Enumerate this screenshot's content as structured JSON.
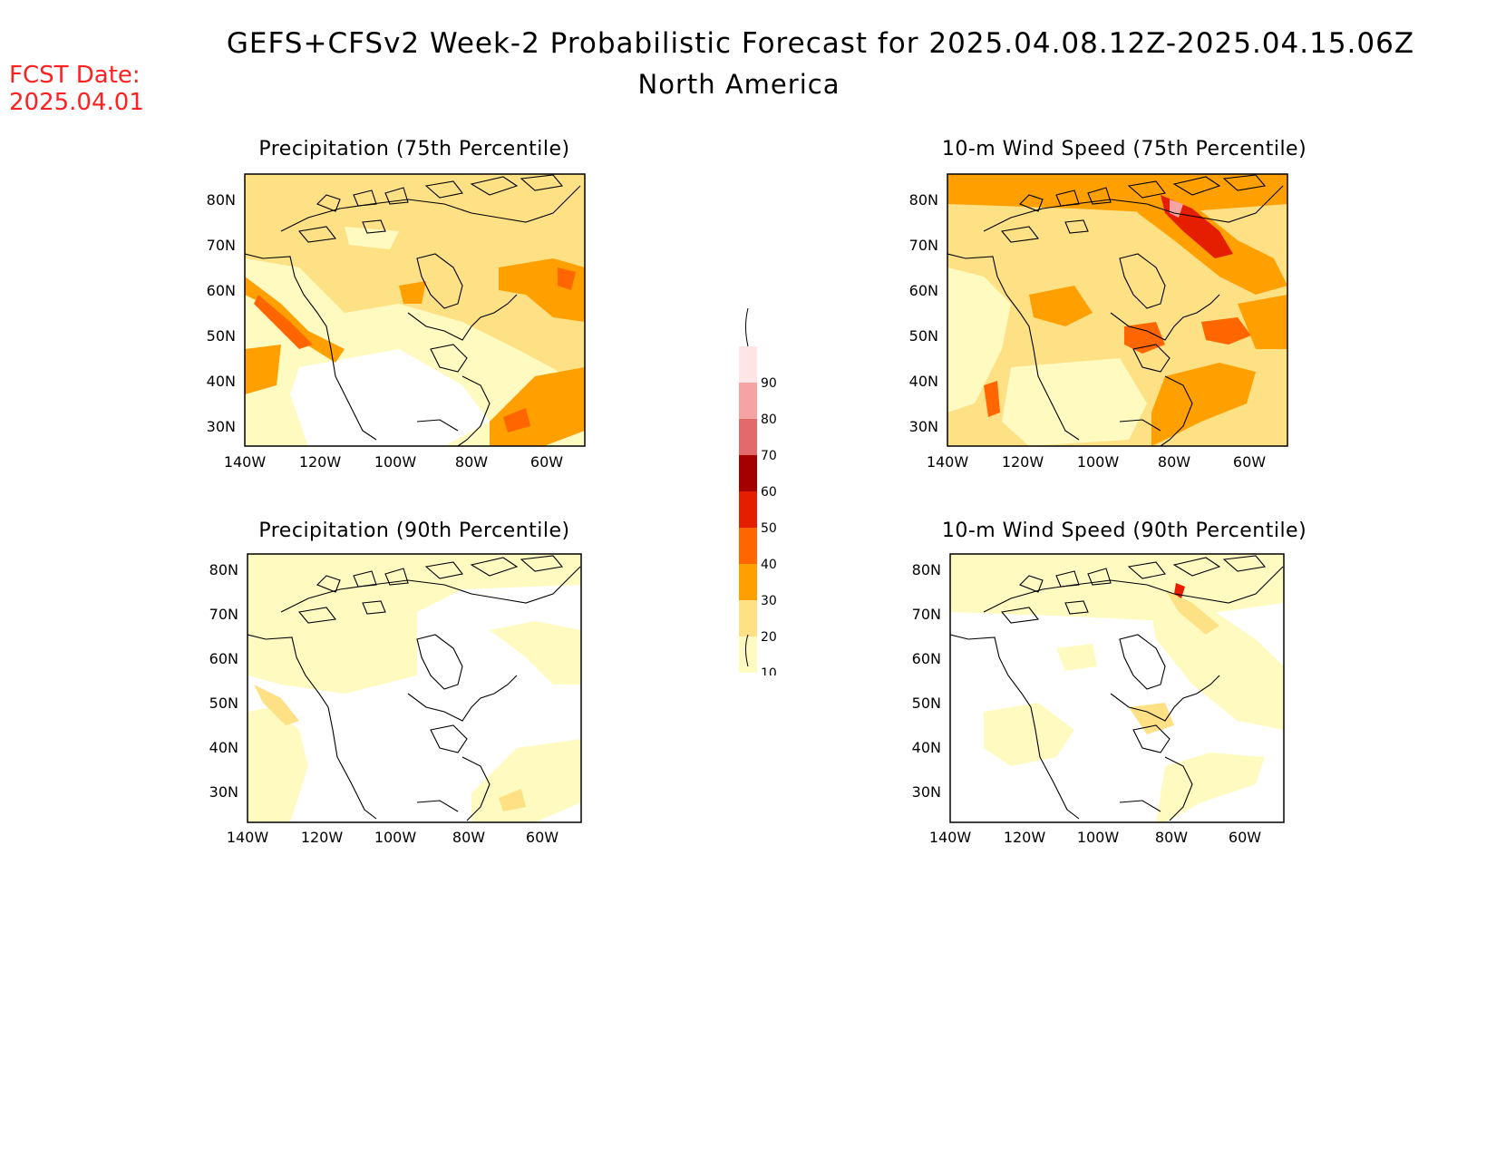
{
  "header": {
    "title": "GEFS+CFSv2 Week-2 Probabilistic Forecast for 2025.04.08.12Z-2025.04.15.06Z",
    "subtitle": "North America",
    "fcst_date_label": "FCST Date:",
    "fcst_date_value": "2025.04.01"
  },
  "axes": {
    "lat_ticks": [
      "80N",
      "70N",
      "60N",
      "50N",
      "40N",
      "30N"
    ],
    "lon_ticks": [
      "140W",
      "120W",
      "100W",
      "80W",
      "60W"
    ]
  },
  "panels": [
    {
      "id": "precip75",
      "title": "Precipitation (75th Percentile)"
    },
    {
      "id": "wind75",
      "title": "10-m Wind Speed (75th Percentile)"
    },
    {
      "id": "precip90",
      "title": "Precipitation (90th Percentile)"
    },
    {
      "id": "wind90",
      "title": "10-m Wind Speed (90th Percentile)"
    }
  ],
  "colorbar": {
    "labels": [
      "10",
      "20",
      "30",
      "40",
      "50",
      "60",
      "70",
      "80",
      "90"
    ],
    "colors": [
      "#fffbc0",
      "#fde184",
      "#ff9f00",
      "#ff6600",
      "#e61e00",
      "#a50000",
      "#e16a6a",
      "#f5a4a4",
      "#ffe5e5"
    ]
  }
}
